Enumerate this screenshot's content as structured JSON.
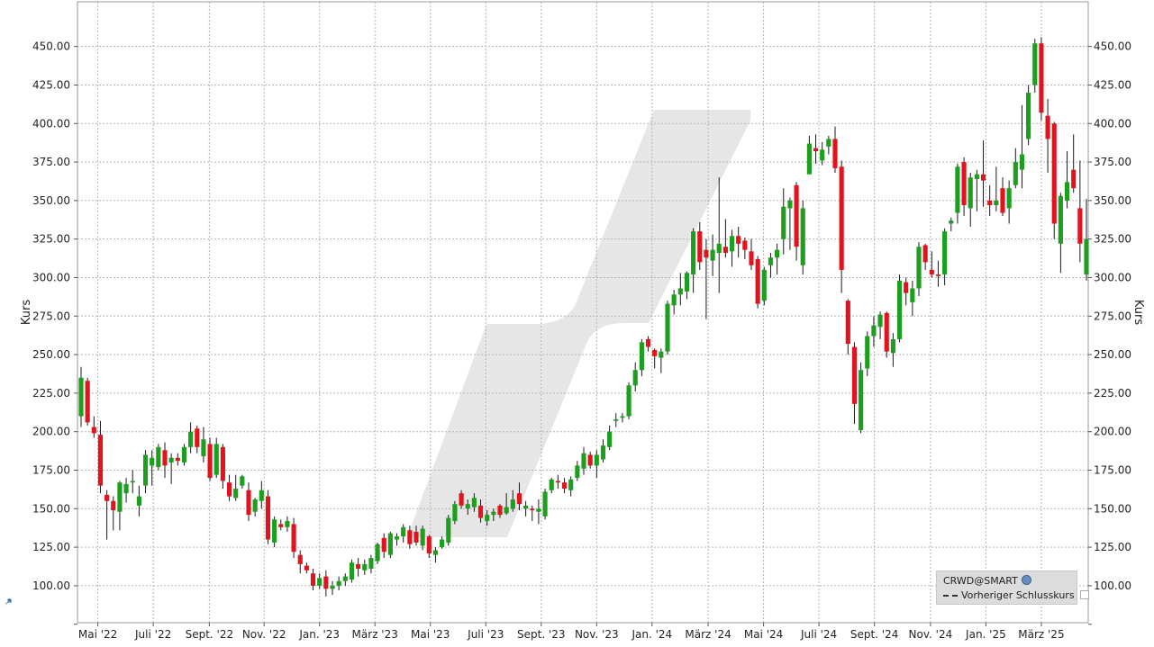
{
  "chart_data": {
    "type": "candlestick",
    "ylabel": "Kurs",
    "ylim": [
      76,
      479
    ],
    "grid": true,
    "x_tick_labels": [
      "Mai '22",
      "Juli '22",
      "Sept. '22",
      "Nov. '22",
      "Jan. '23",
      "März '23",
      "Mai '23",
      "Juli '23",
      "Sept. '23",
      "Nov. '23",
      "Jan. '24",
      "März '24",
      "Mai '24",
      "Juli '24",
      "Sept. '24",
      "Nov. '24",
      "Jan. '25",
      "März '25"
    ],
    "y_ticks": [
      100,
      125,
      150,
      175,
      200,
      225,
      250,
      275,
      300,
      325,
      350,
      375,
      400,
      425,
      450
    ],
    "y_tick_labels": [
      "100.00",
      "125.00",
      "150.00",
      "175.00",
      "200.00",
      "225.00",
      "250.00",
      "275.00",
      "300.00",
      "325.00",
      "350.00",
      "375.00",
      "400.00",
      "425.00",
      "450.00"
    ],
    "colors": {
      "up": "#1e9e1e",
      "down": "#e0141e",
      "grid": "#b4b4b4",
      "watermark": "#e6e6e6"
    },
    "legend": {
      "series_name": "CRWD@SMART",
      "reference_line": "Vorheriger Schlusskurs",
      "placement": "bottom-right"
    },
    "series": [
      {
        "o": 210,
        "h": 242,
        "l": 203,
        "c": 235
      },
      {
        "o": 233,
        "h": 235,
        "l": 204,
        "c": 206
      },
      {
        "o": 203,
        "h": 210,
        "l": 196,
        "c": 199
      },
      {
        "o": 198,
        "h": 207,
        "l": 160,
        "c": 165
      },
      {
        "o": 159,
        "h": 162,
        "l": 130,
        "c": 155
      },
      {
        "o": 155,
        "h": 158,
        "l": 136,
        "c": 149
      },
      {
        "o": 148,
        "h": 168,
        "l": 136,
        "c": 167
      },
      {
        "o": 160,
        "h": 170,
        "l": 154,
        "c": 166
      },
      {
        "o": 167,
        "h": 175,
        "l": 160,
        "c": 168
      },
      {
        "o": 152,
        "h": 165,
        "l": 145,
        "c": 158
      },
      {
        "o": 165,
        "h": 188,
        "l": 160,
        "c": 185
      },
      {
        "o": 178,
        "h": 188,
        "l": 165,
        "c": 183
      },
      {
        "o": 177,
        "h": 192,
        "l": 175,
        "c": 190
      },
      {
        "o": 188,
        "h": 193,
        "l": 170,
        "c": 178
      },
      {
        "o": 180,
        "h": 186,
        "l": 166,
        "c": 183
      },
      {
        "o": 183,
        "h": 186,
        "l": 178,
        "c": 181
      },
      {
        "o": 180,
        "h": 192,
        "l": 178,
        "c": 190
      },
      {
        "o": 190,
        "h": 206,
        "l": 186,
        "c": 200
      },
      {
        "o": 202,
        "h": 204,
        "l": 186,
        "c": 190
      },
      {
        "o": 184,
        "h": 203,
        "l": 180,
        "c": 195
      },
      {
        "o": 192,
        "h": 196,
        "l": 168,
        "c": 170
      },
      {
        "o": 172,
        "h": 196,
        "l": 170,
        "c": 192
      },
      {
        "o": 190,
        "h": 192,
        "l": 163,
        "c": 168
      },
      {
        "o": 167,
        "h": 172,
        "l": 155,
        "c": 158
      },
      {
        "o": 157,
        "h": 172,
        "l": 155,
        "c": 163
      },
      {
        "o": 165,
        "h": 172,
        "l": 163,
        "c": 171
      },
      {
        "o": 162,
        "h": 167,
        "l": 142,
        "c": 146
      },
      {
        "o": 148,
        "h": 157,
        "l": 145,
        "c": 156
      },
      {
        "o": 155,
        "h": 168,
        "l": 150,
        "c": 162
      },
      {
        "o": 158,
        "h": 162,
        "l": 127,
        "c": 130
      },
      {
        "o": 128,
        "h": 145,
        "l": 125,
        "c": 143
      },
      {
        "o": 140,
        "h": 143,
        "l": 136,
        "c": 138
      },
      {
        "o": 138,
        "h": 145,
        "l": 135,
        "c": 142
      },
      {
        "o": 140,
        "h": 144,
        "l": 118,
        "c": 122
      },
      {
        "o": 120,
        "h": 123,
        "l": 108,
        "c": 114
      },
      {
        "o": 113,
        "h": 115,
        "l": 108,
        "c": 110
      },
      {
        "o": 108,
        "h": 111,
        "l": 97,
        "c": 100
      },
      {
        "o": 100,
        "h": 108,
        "l": 98,
        "c": 105
      },
      {
        "o": 106,
        "h": 110,
        "l": 93,
        "c": 98
      },
      {
        "o": 98,
        "h": 103,
        "l": 94,
        "c": 100
      },
      {
        "o": 100,
        "h": 106,
        "l": 97,
        "c": 103
      },
      {
        "o": 103,
        "h": 108,
        "l": 100,
        "c": 106
      },
      {
        "o": 104,
        "h": 117,
        "l": 102,
        "c": 115
      },
      {
        "o": 114,
        "h": 118,
        "l": 106,
        "c": 111
      },
      {
        "o": 110,
        "h": 117,
        "l": 107,
        "c": 114
      },
      {
        "o": 111,
        "h": 120,
        "l": 108,
        "c": 118
      },
      {
        "o": 116,
        "h": 128,
        "l": 114,
        "c": 127
      },
      {
        "o": 131,
        "h": 134,
        "l": 118,
        "c": 122
      },
      {
        "o": 120,
        "h": 135,
        "l": 118,
        "c": 134
      },
      {
        "o": 130,
        "h": 134,
        "l": 126,
        "c": 132
      },
      {
        "o": 132,
        "h": 140,
        "l": 128,
        "c": 138
      },
      {
        "o": 136,
        "h": 139,
        "l": 124,
        "c": 127
      },
      {
        "o": 135,
        "h": 139,
        "l": 126,
        "c": 128
      },
      {
        "o": 126,
        "h": 139,
        "l": 123,
        "c": 137
      },
      {
        "o": 132,
        "h": 133,
        "l": 118,
        "c": 121
      },
      {
        "o": 120,
        "h": 125,
        "l": 115,
        "c": 123
      },
      {
        "o": 125,
        "h": 132,
        "l": 124,
        "c": 130
      },
      {
        "o": 128,
        "h": 146,
        "l": 126,
        "c": 144
      },
      {
        "o": 142,
        "h": 155,
        "l": 140,
        "c": 153
      },
      {
        "o": 160,
        "h": 162,
        "l": 150,
        "c": 152
      },
      {
        "o": 150,
        "h": 156,
        "l": 146,
        "c": 153
      },
      {
        "o": 151,
        "h": 160,
        "l": 148,
        "c": 157
      },
      {
        "o": 152,
        "h": 156,
        "l": 141,
        "c": 144
      },
      {
        "o": 142,
        "h": 149,
        "l": 139,
        "c": 146
      },
      {
        "o": 146,
        "h": 150,
        "l": 142,
        "c": 148
      },
      {
        "o": 152,
        "h": 153,
        "l": 144,
        "c": 146
      },
      {
        "o": 147,
        "h": 160,
        "l": 146,
        "c": 151
      },
      {
        "o": 150,
        "h": 162,
        "l": 148,
        "c": 156
      },
      {
        "o": 160,
        "h": 167,
        "l": 149,
        "c": 153
      },
      {
        "o": 150,
        "h": 155,
        "l": 145,
        "c": 152
      },
      {
        "o": 150,
        "h": 152,
        "l": 142,
        "c": 149
      },
      {
        "o": 148,
        "h": 156,
        "l": 140,
        "c": 150
      },
      {
        "o": 145,
        "h": 163,
        "l": 143,
        "c": 161
      },
      {
        "o": 162,
        "h": 170,
        "l": 160,
        "c": 169
      },
      {
        "o": 168,
        "h": 172,
        "l": 163,
        "c": 167
      },
      {
        "o": 167,
        "h": 170,
        "l": 160,
        "c": 163
      },
      {
        "o": 162,
        "h": 171,
        "l": 158,
        "c": 169
      },
      {
        "o": 170,
        "h": 181,
        "l": 168,
        "c": 178
      },
      {
        "o": 176,
        "h": 190,
        "l": 172,
        "c": 186
      },
      {
        "o": 185,
        "h": 187,
        "l": 176,
        "c": 178
      },
      {
        "o": 178,
        "h": 188,
        "l": 170,
        "c": 185
      },
      {
        "o": 182,
        "h": 195,
        "l": 180,
        "c": 191
      },
      {
        "o": 190,
        "h": 204,
        "l": 188,
        "c": 200
      },
      {
        "o": 207,
        "h": 212,
        "l": 203,
        "c": 208
      },
      {
        "o": 209,
        "h": 212,
        "l": 206,
        "c": 210
      },
      {
        "o": 210,
        "h": 232,
        "l": 208,
        "c": 230
      },
      {
        "o": 230,
        "h": 245,
        "l": 226,
        "c": 240
      },
      {
        "o": 240,
        "h": 260,
        "l": 236,
        "c": 258
      },
      {
        "o": 260,
        "h": 262,
        "l": 252,
        "c": 255
      },
      {
        "o": 253,
        "h": 254,
        "l": 241,
        "c": 249
      },
      {
        "o": 248,
        "h": 254,
        "l": 238,
        "c": 252
      },
      {
        "o": 252,
        "h": 285,
        "l": 250,
        "c": 283
      },
      {
        "o": 282,
        "h": 292,
        "l": 276,
        "c": 289
      },
      {
        "o": 289,
        "h": 303,
        "l": 282,
        "c": 293
      },
      {
        "o": 291,
        "h": 304,
        "l": 286,
        "c": 303
      },
      {
        "o": 302,
        "h": 332,
        "l": 290,
        "c": 330
      },
      {
        "o": 330,
        "h": 336,
        "l": 305,
        "c": 310
      },
      {
        "o": 318,
        "h": 325,
        "l": 273,
        "c": 313
      },
      {
        "o": 311,
        "h": 328,
        "l": 301,
        "c": 318
      },
      {
        "o": 316,
        "h": 365,
        "l": 290,
        "c": 322
      },
      {
        "o": 320,
        "h": 338,
        "l": 313,
        "c": 316
      },
      {
        "o": 317,
        "h": 331,
        "l": 307,
        "c": 327
      },
      {
        "o": 327,
        "h": 333,
        "l": 313,
        "c": 322
      },
      {
        "o": 324,
        "h": 326,
        "l": 312,
        "c": 318
      },
      {
        "o": 317,
        "h": 325,
        "l": 305,
        "c": 308
      },
      {
        "o": 312,
        "h": 314,
        "l": 280,
        "c": 283
      },
      {
        "o": 285,
        "h": 307,
        "l": 282,
        "c": 305
      },
      {
        "o": 308,
        "h": 316,
        "l": 300,
        "c": 313
      },
      {
        "o": 313,
        "h": 322,
        "l": 302,
        "c": 318
      },
      {
        "o": 325,
        "h": 358,
        "l": 315,
        "c": 346
      },
      {
        "o": 345,
        "h": 352,
        "l": 318,
        "c": 350
      },
      {
        "o": 360,
        "h": 362,
        "l": 311,
        "c": 320
      },
      {
        "o": 308,
        "h": 350,
        "l": 302,
        "c": 345
      },
      {
        "o": 367,
        "h": 392,
        "l": 368,
        "c": 387
      },
      {
        "o": 384,
        "h": 393,
        "l": 374,
        "c": 382
      },
      {
        "o": 376,
        "h": 388,
        "l": 373,
        "c": 383
      },
      {
        "o": 385,
        "h": 392,
        "l": 380,
        "c": 390
      },
      {
        "o": 390,
        "h": 398,
        "l": 368,
        "c": 371
      },
      {
        "o": 372,
        "h": 376,
        "l": 290,
        "c": 305
      },
      {
        "o": 285,
        "h": 286,
        "l": 250,
        "c": 257
      },
      {
        "o": 255,
        "h": 258,
        "l": 205,
        "c": 218
      },
      {
        "o": 201,
        "h": 245,
        "l": 199,
        "c": 240
      },
      {
        "o": 241,
        "h": 265,
        "l": 236,
        "c": 262
      },
      {
        "o": 262,
        "h": 275,
        "l": 255,
        "c": 269
      },
      {
        "o": 268,
        "h": 278,
        "l": 260,
        "c": 276
      },
      {
        "o": 277,
        "h": 278,
        "l": 248,
        "c": 252
      },
      {
        "o": 251,
        "h": 264,
        "l": 242,
        "c": 260
      },
      {
        "o": 260,
        "h": 302,
        "l": 258,
        "c": 298
      },
      {
        "o": 297,
        "h": 300,
        "l": 282,
        "c": 290
      },
      {
        "o": 284,
        "h": 298,
        "l": 275,
        "c": 293
      },
      {
        "o": 293,
        "h": 323,
        "l": 288,
        "c": 320
      },
      {
        "o": 321,
        "h": 322,
        "l": 305,
        "c": 310
      },
      {
        "o": 305,
        "h": 317,
        "l": 300,
        "c": 302
      },
      {
        "o": 302,
        "h": 311,
        "l": 294,
        "c": 301
      },
      {
        "o": 302,
        "h": 332,
        "l": 295,
        "c": 330
      },
      {
        "o": 335,
        "h": 339,
        "l": 330,
        "c": 337
      },
      {
        "o": 342,
        "h": 374,
        "l": 335,
        "c": 372
      },
      {
        "o": 375,
        "h": 378,
        "l": 340,
        "c": 347
      },
      {
        "o": 345,
        "h": 368,
        "l": 333,
        "c": 365
      },
      {
        "o": 364,
        "h": 370,
        "l": 343,
        "c": 367
      },
      {
        "o": 367,
        "h": 389,
        "l": 346,
        "c": 363
      },
      {
        "o": 350,
        "h": 360,
        "l": 340,
        "c": 347
      },
      {
        "o": 347,
        "h": 372,
        "l": 343,
        "c": 350
      },
      {
        "o": 358,
        "h": 365,
        "l": 340,
        "c": 342
      },
      {
        "o": 345,
        "h": 363,
        "l": 335,
        "c": 358
      },
      {
        "o": 360,
        "h": 384,
        "l": 358,
        "c": 375
      },
      {
        "o": 370,
        "h": 412,
        "l": 358,
        "c": 380
      },
      {
        "o": 390,
        "h": 425,
        "l": 386,
        "c": 420
      },
      {
        "o": 425,
        "h": 455,
        "l": 420,
        "c": 452
      },
      {
        "o": 452,
        "h": 456,
        "l": 402,
        "c": 407
      },
      {
        "o": 405,
        "h": 416,
        "l": 368,
        "c": 390
      },
      {
        "o": 400,
        "h": 401,
        "l": 325,
        "c": 335
      },
      {
        "o": 322,
        "h": 355,
        "l": 303,
        "c": 353
      },
      {
        "o": 350,
        "h": 382,
        "l": 345,
        "c": 362
      },
      {
        "o": 370,
        "h": 393,
        "l": 355,
        "c": 358
      },
      {
        "o": 345,
        "h": 376,
        "l": 310,
        "c": 322
      },
      {
        "o": 302,
        "h": 351,
        "l": 298,
        "c": 325
      }
    ]
  },
  "legend_panel": {
    "ticker": "CRWD@SMART",
    "ref_label": "Vorheriger Schlusskurs",
    "ticker_icon": "globe-icon",
    "ref_style": "dashed-line-icon"
  },
  "toolbar": {
    "settings_icon": "tool-icon"
  }
}
